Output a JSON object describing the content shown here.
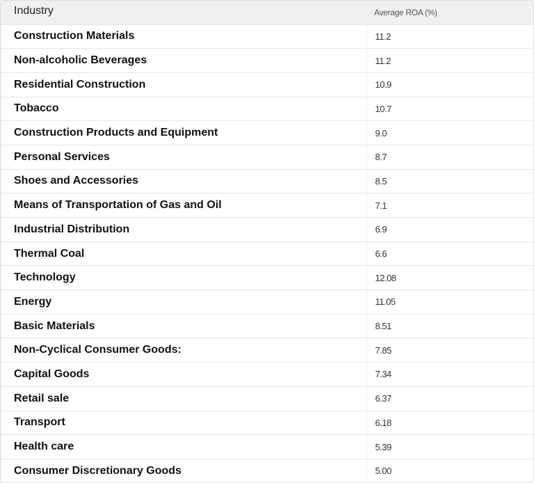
{
  "table": {
    "header": [
      "Industry",
      "Average ROA (%)"
    ],
    "rows": [
      [
        "Construction Materials",
        "11.2"
      ],
      [
        "Non-alcoholic Beverages",
        "11.2"
      ],
      [
        "Residential Construction",
        "10.9"
      ],
      [
        "Tobacco",
        "10.7"
      ],
      [
        "Construction Products and Equipment",
        "9.0"
      ],
      [
        "Personal Services",
        "8.7"
      ],
      [
        "Shoes and Accessories",
        "8.5"
      ],
      [
        "Means of Transportation of Gas and Oil",
        "7.1"
      ],
      [
        "Industrial Distribution",
        "6.9"
      ],
      [
        "Thermal Coal",
        "6.6"
      ],
      [
        "Technology",
        "12.08"
      ],
      [
        "Energy",
        "11.05"
      ],
      [
        "Basic Materials",
        "8.51"
      ],
      [
        "Non-Cyclical Consumer Goods:",
        "7.85"
      ],
      [
        "Capital Goods",
        "7.34"
      ],
      [
        "Retail sale",
        "6.37"
      ],
      [
        "Transport",
        "6.18"
      ],
      [
        "Health care",
        "5.39"
      ],
      [
        "Consumer Discretionary Goods",
        "5.00"
      ]
    ]
  }
}
